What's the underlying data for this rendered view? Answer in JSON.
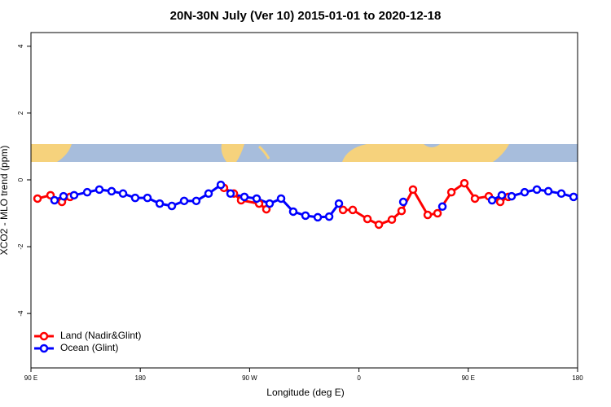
{
  "chart_data": {
    "type": "line",
    "title": "20N-30N July (Ver 10)   2015-01-01 to 2020-12-18",
    "xlabel": "Longitude (deg E)",
    "ylabel": "XCO2 - MLO trend (ppm)",
    "xlim": [
      90,
      540
    ],
    "ylim": [
      -5.63,
      4.41
    ],
    "xticks": [
      {
        "value": 90,
        "label": "90 E"
      },
      180,
      {
        "value": 270,
        "label": "90 W"
      },
      {
        "value": 360,
        "label": "0"
      },
      {
        "value": 450,
        "label": "90 E"
      },
      {
        "value": 540,
        "label": "180"
      }
    ],
    "yticks": [
      -4,
      -2,
      0,
      2,
      4
    ],
    "legend": "bottomleft",
    "series": [
      {
        "name": "Land (Nadir&Glint)",
        "color": "#ff0000",
        "x": [
          95.4,
          106.1,
          115.5,
          122.2,
          null,
          248.9,
          257.0,
          263.0,
          277.8,
          283.8,
          null,
          346.9,
          354.9,
          367.0,
          376.4,
          387.1,
          395.1,
          404.5,
          416.6,
          424.7,
          436.1,
          446.8,
          455.5,
          466.9,
          476.3,
          483.0
        ],
        "values": [
          -0.56,
          -0.46,
          -0.66,
          -0.51,
          null,
          -0.24,
          -0.41,
          -0.61,
          -0.71,
          -0.88,
          null,
          -0.9,
          -0.9,
          -1.17,
          -1.34,
          -1.19,
          -0.93,
          -0.29,
          -1.05,
          -1.0,
          -0.37,
          -0.1,
          -0.56,
          -0.49,
          -0.66,
          -0.51
        ]
      },
      {
        "name": "Ocean (Glint)",
        "color": "#0000ff",
        "x": [
          109.4,
          116.8,
          125.5,
          136.3,
          146.3,
          156.4,
          165.8,
          175.8,
          185.9,
          196.0,
          206.0,
          216.1,
          226.1,
          236.2,
          246.3,
          254.3,
          265.7,
          275.8,
          286.5,
          295.9,
          305.9,
          316.0,
          326.1,
          335.5,
          343.5,
          null,
          396.5,
          null,
          428.7,
          null,
          469.6,
          477.6,
          485.7,
          496.4,
          506.5,
          515.9,
          526.6,
          536.7
        ],
        "values": [
          -0.61,
          -0.49,
          -0.46,
          -0.37,
          -0.29,
          -0.34,
          -0.41,
          -0.54,
          -0.54,
          -0.71,
          -0.78,
          -0.63,
          -0.63,
          -0.41,
          -0.15,
          -0.41,
          -0.51,
          -0.56,
          -0.71,
          -0.56,
          -0.95,
          -1.07,
          -1.12,
          -1.1,
          -0.71,
          null,
          -0.66,
          null,
          -0.8,
          null,
          -0.61,
          -0.46,
          -0.49,
          -0.37,
          -0.29,
          -0.34,
          -0.41,
          -0.51
        ]
      }
    ]
  }
}
